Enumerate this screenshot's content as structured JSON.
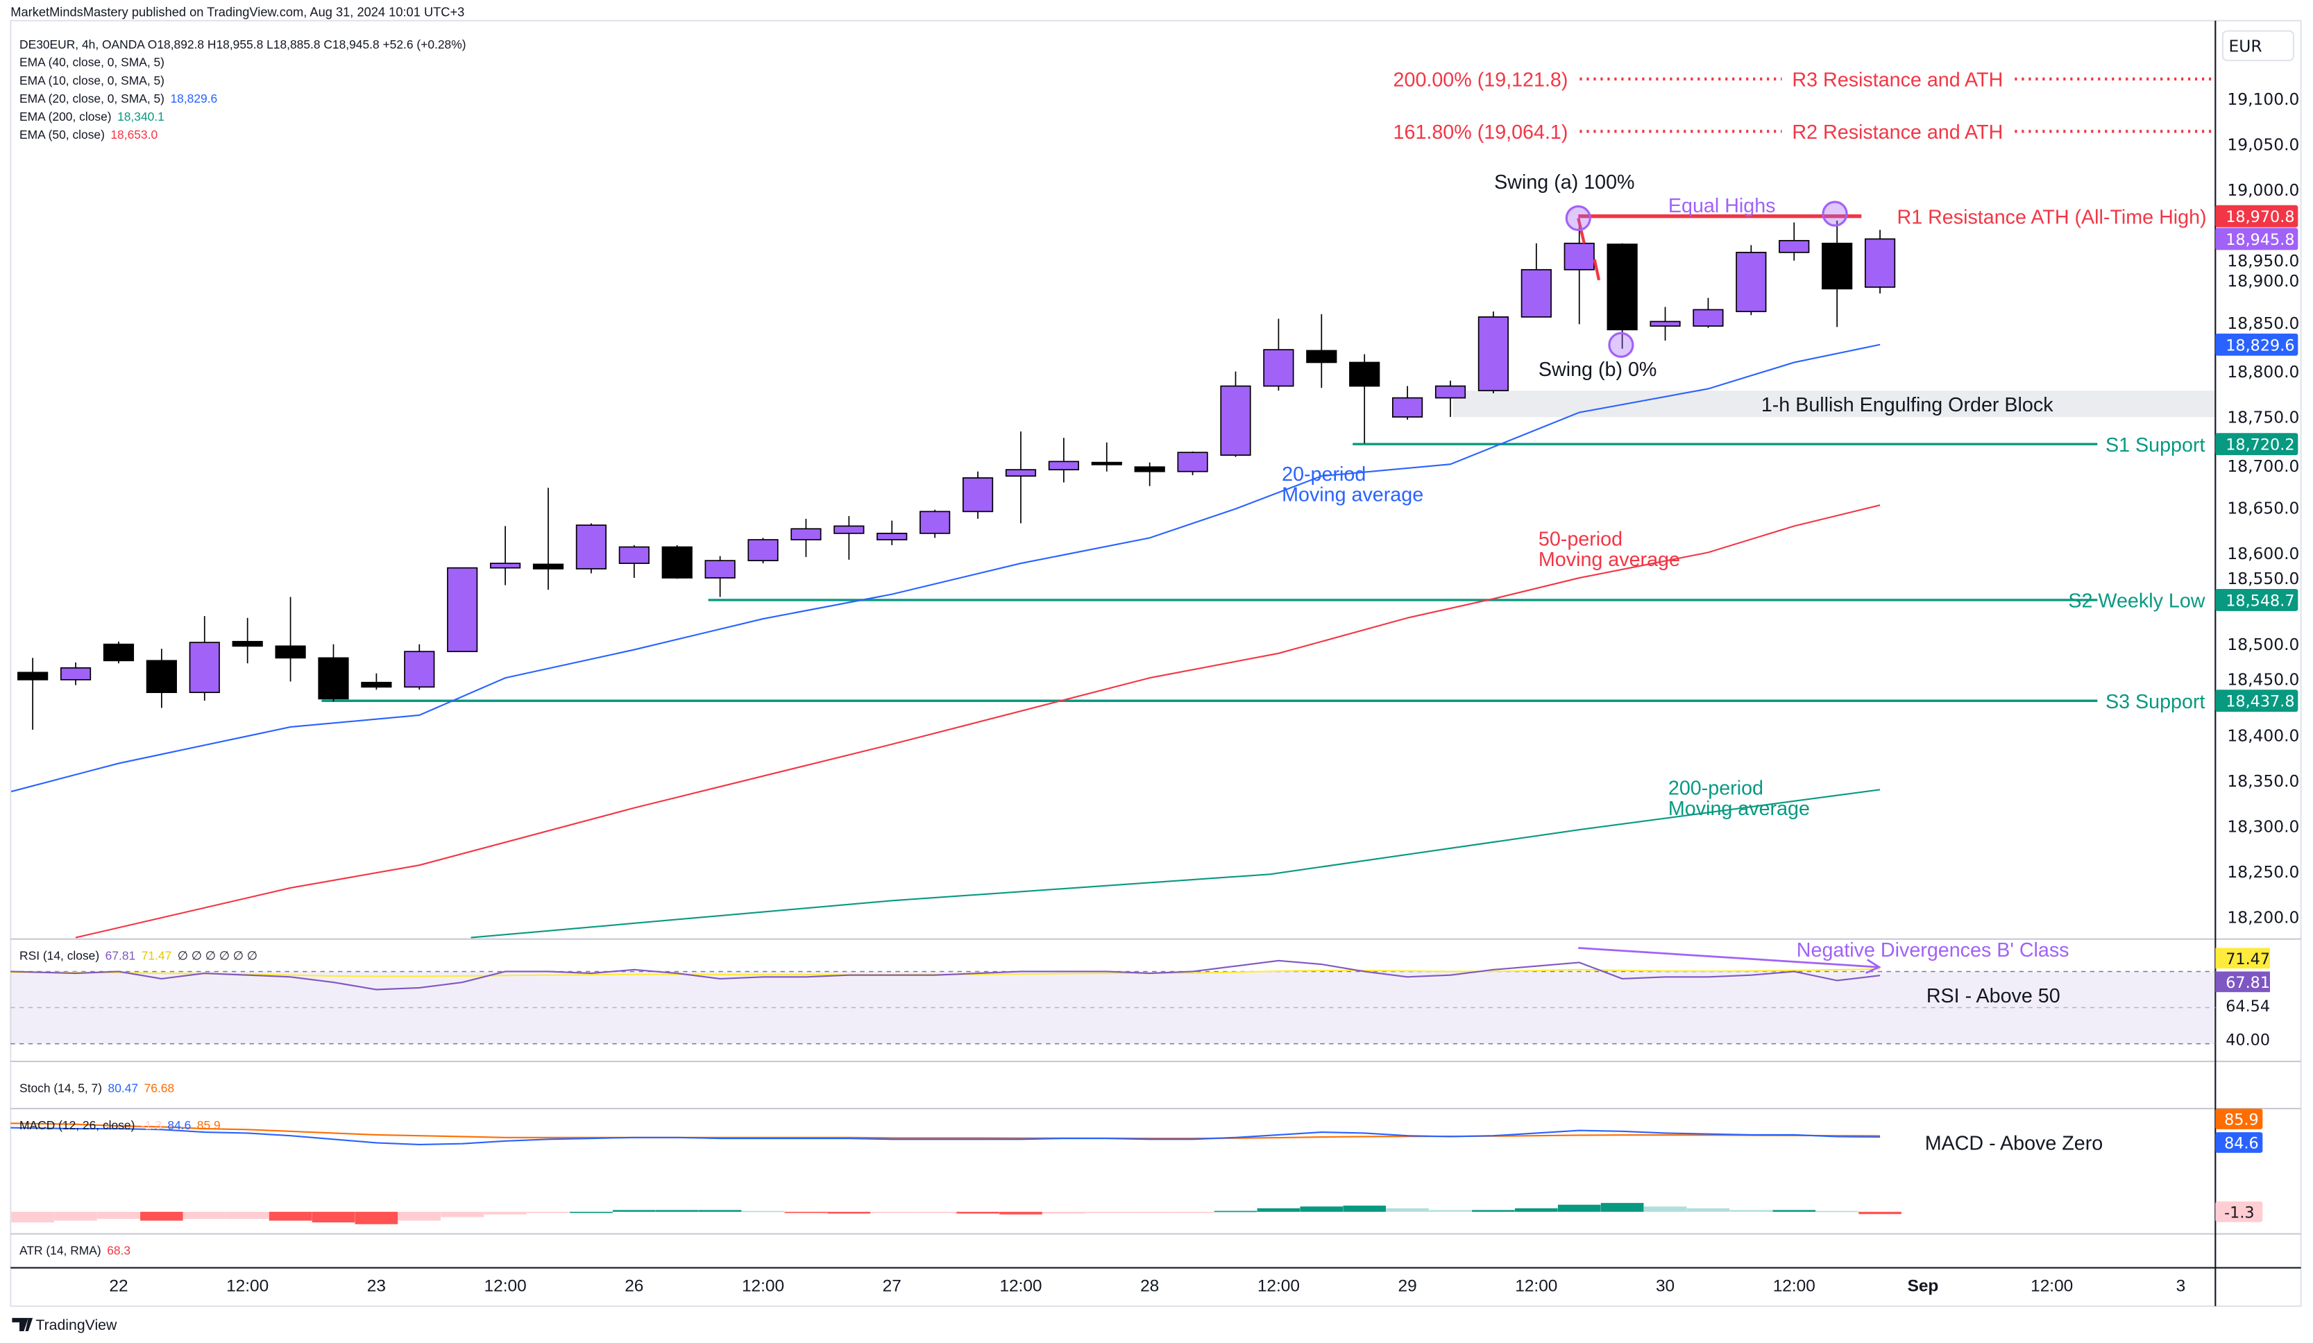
{
  "header": {
    "published": "MarketMindsMastery published on TradingView.com, Aug 31, 2024 10:01 UTC+3",
    "symbol_line": "DE30EUR, 4h, OANDA  O18,892.8  H18,955.8  L18,885.8  C18,945.8  +52.6 (+0.28%)"
  },
  "legend": [
    {
      "label": "EMA (40, close, 0, SMA, 5)",
      "value": "",
      "color": "#131722"
    },
    {
      "label": "EMA (10, close, 0, SMA, 5)",
      "value": "",
      "color": "#131722"
    },
    {
      "label": "EMA (20, close, 0, SMA, 5)",
      "value": "18,829.6",
      "color": "#2962FF"
    },
    {
      "label": "EMA (200, close)",
      "value": "18,340.1",
      "color": "#089981"
    },
    {
      "label": "EMA (50, close)",
      "value": "18,653.0",
      "color": "#F23645"
    }
  ],
  "colors": {
    "bull": "#A162F7",
    "bear": "#000000",
    "ema20": "#2962FF",
    "ema50": "#F23645",
    "ema200": "#089981",
    "support": "#089981",
    "resistance": "#F23645",
    "purple": "#A162F7",
    "rsi": "#7E57C2",
    "rsi_signal": "#FFEB3B",
    "macd": "#2962FF",
    "macd_signal": "#FF6D00"
  },
  "currency": "EUR",
  "price_ticks": [
    "19,100.0",
    "19,050.0",
    "19,000.0",
    "18,950.0",
    "18,900.0",
    "18,850.0",
    "18,800.0",
    "18,750.0",
    "18,700.0",
    "18,650.0",
    "18,600.0",
    "18,550.0",
    "18,500.0",
    "18,450.0",
    "18,400.0",
    "18,350.0",
    "18,300.0",
    "18,250.0",
    "18,200.0"
  ],
  "price_tick_values": [
    19100,
    19050,
    19000,
    18950,
    18900,
    18850,
    18800,
    18750,
    18700,
    18650,
    18600,
    18550,
    18500,
    18450,
    18400,
    18350,
    18300,
    18250,
    18200
  ],
  "price_labels": [
    {
      "text": "18,970.8",
      "value": 18970.8,
      "bg": "#F23645",
      "fg": "#ffffff"
    },
    {
      "text": "18,945.8",
      "value": 18945.8,
      "bg": "#A162F7",
      "fg": "#ffffff"
    },
    {
      "text": "18,829.6",
      "value": 18829.6,
      "bg": "#2962FF",
      "fg": "#ffffff"
    },
    {
      "text": "18,720.2",
      "value": 18720.2,
      "bg": "#089981",
      "fg": "#ffffff"
    },
    {
      "text": "18,548.7",
      "value": 18548.7,
      "bg": "#089981",
      "fg": "#ffffff"
    },
    {
      "text": "18,437.8",
      "value": 18437.8,
      "bg": "#089981",
      "fg": "#ffffff"
    }
  ],
  "candles": [
    [
      18469,
      18485,
      18406,
      18461
    ],
    [
      18461,
      18480,
      18455,
      18474
    ],
    [
      18500,
      18503,
      18479,
      18482
    ],
    [
      18482,
      18495,
      18430,
      18447
    ],
    [
      18447,
      18531,
      18438,
      18502
    ],
    [
      18503,
      18529,
      18479,
      18498
    ],
    [
      18498,
      18552,
      18459,
      18485
    ],
    [
      18485,
      18500,
      18437,
      18440
    ],
    [
      18458,
      18468,
      18450,
      18453
    ],
    [
      18453,
      18500,
      18450,
      18492
    ],
    [
      18492,
      18584,
      18492,
      18584
    ],
    [
      18584,
      18630,
      18565,
      18589
    ],
    [
      18588,
      18672,
      18560,
      18583
    ],
    [
      18583,
      18633,
      18578,
      18631
    ],
    [
      18589,
      18609,
      18573,
      18607
    ],
    [
      18607,
      18609,
      18572,
      18573
    ],
    [
      18573,
      18597,
      18552,
      18592
    ],
    [
      18592,
      18617,
      18589,
      18615
    ],
    [
      18615,
      18638,
      18596,
      18627
    ],
    [
      18622,
      18641,
      18593,
      18630
    ],
    [
      18615,
      18636,
      18609,
      18622
    ],
    [
      18622,
      18648,
      18617,
      18646
    ],
    [
      18646,
      18690,
      18638,
      18683
    ],
    [
      18685,
      18734,
      18633,
      18692
    ],
    [
      18692,
      18727,
      18678,
      18701
    ],
    [
      18700,
      18722,
      18690,
      18699
    ],
    [
      18695,
      18700,
      18674,
      18690
    ],
    [
      18690,
      18712,
      18686,
      18711
    ],
    [
      18708,
      18800,
      18706,
      18784
    ],
    [
      18784,
      18858,
      18779,
      18824
    ],
    [
      18823,
      18863,
      18782,
      18810
    ],
    [
      18810,
      18819,
      18721,
      18784
    ],
    [
      18750,
      18784,
      18747,
      18771
    ],
    [
      18771,
      18790,
      18750,
      18784
    ],
    [
      18779,
      18866,
      18776,
      18860
    ],
    [
      18860,
      18941,
      18860,
      18912
    ],
    [
      18912,
      18966,
      18852,
      18941
    ],
    [
      18940,
      18941,
      18825,
      18846
    ],
    [
      18850,
      18871,
      18834,
      18855
    ],
    [
      18850,
      18881,
      18848,
      18868
    ],
    [
      18866,
      18939,
      18862,
      18931
    ],
    [
      18931,
      18964,
      18922,
      18944
    ],
    [
      18941,
      18966,
      18849,
      18891
    ],
    [
      18892.8,
      18955.8,
      18885.8,
      18945.8
    ]
  ],
  "ema20": [
    [
      -0.5,
      18338
    ],
    [
      2,
      18369
    ],
    [
      6,
      18409
    ],
    [
      9,
      18422
    ],
    [
      11,
      18463
    ],
    [
      14,
      18494
    ],
    [
      17,
      18528
    ],
    [
      20,
      18555
    ],
    [
      23,
      18589
    ],
    [
      26,
      18617
    ],
    [
      28,
      18649
    ],
    [
      30,
      18685
    ],
    [
      33,
      18698
    ],
    [
      36,
      18755
    ],
    [
      39,
      18781
    ],
    [
      41,
      18810
    ],
    [
      43,
      18829.6
    ]
  ],
  "ema50": [
    [
      1,
      18177
    ],
    [
      6,
      18232
    ],
    [
      9,
      18257
    ],
    [
      14,
      18320
    ],
    [
      20,
      18390
    ],
    [
      26,
      18463
    ],
    [
      29,
      18490
    ],
    [
      32,
      18529
    ],
    [
      34,
      18550
    ],
    [
      36,
      18573
    ],
    [
      39,
      18601
    ],
    [
      41,
      18630
    ],
    [
      43,
      18653
    ]
  ],
  "ema200": [
    [
      10.2,
      18177
    ],
    [
      20,
      18218
    ],
    [
      28.8,
      18247
    ],
    [
      36,
      18296
    ],
    [
      43,
      18340.1
    ]
  ],
  "levels": {
    "s1": {
      "label": "S1 Support",
      "value": 18720.2,
      "from": 31
    },
    "s2": {
      "label": "S2 Weekly Low",
      "value": 18548.7,
      "from": 16
    },
    "s3": {
      "label": "S3 Support",
      "value": 18437.8,
      "from": 7
    },
    "r1": {
      "label": "R1 Resistance ATH (All-Time High)",
      "value": 18970.8
    },
    "r2": {
      "label": "R2 Resistance and ATH",
      "fib": "161.80% (19,064.1)",
      "value": 19064.1
    },
    "r3": {
      "label": "R3 Resistance and ATH",
      "fib": "200.00% (19,121.8)",
      "value": 19121.8
    }
  },
  "annotations": {
    "swing_a": "Swing (a) 100%",
    "swing_b": "Swing (b) 0%",
    "equal_highs": "Equal Highs",
    "order_block": "1-h Bullish Engulfing Order Block",
    "ma20_1": "20-period",
    "ma20_2": "Moving average",
    "ma50_1": "50-period",
    "ma50_2": "Moving average",
    "ma200_1": "200-period",
    "ma200_2": "Moving average",
    "divergence": "Negative Divergences B' Class",
    "rsi_note": "RSI -  Above 50",
    "macd_note": "MACD - Above Zero"
  },
  "rsi": {
    "title": "RSI (14, close)",
    "value": "67.81",
    "signal_value": "71.47",
    "extras": "∅ ∅ ∅ ∅ ∅ ∅",
    "axis": [
      {
        "text": "71.47",
        "bg": "#FFEB3B",
        "fg": "#131722"
      },
      {
        "text": "67.81",
        "bg": "#7E57C2",
        "fg": "#ffffff"
      },
      {
        "text": "64.54"
      },
      {
        "text": "40.00"
      }
    ],
    "values": [
      70,
      69,
      70,
      66,
      69,
      68,
      67,
      64,
      60,
      61,
      64,
      70,
      70,
      69,
      71,
      69,
      66,
      67,
      67,
      68,
      68,
      68,
      69,
      70,
      70,
      70,
      69,
      70,
      73,
      76,
      74,
      70,
      67,
      68,
      71,
      73,
      75,
      66,
      67,
      67,
      68,
      70,
      65,
      67.81
    ],
    "signal": [
      69.5,
      69.5,
      69.3,
      69,
      68.8,
      68.5,
      68,
      67.5,
      67.3,
      67.3,
      67.5,
      67.8,
      68,
      68.2,
      68.4,
      68.4,
      68.3,
      68.2,
      68.2,
      68.2,
      68.2,
      68.3,
      68.4,
      68.6,
      68.8,
      69,
      69,
      69.1,
      69.6,
      70.2,
      70.6,
      70.6,
      70.3,
      70,
      70.1,
      70.5,
      71,
      70.6,
      70.3,
      70.2,
      70.3,
      70.6,
      70.9,
      71.47
    ]
  },
  "stoch": {
    "title": "Stoch (14, 5, 7)",
    "k": "80.47",
    "d": "76.68"
  },
  "macd": {
    "title": "MACD (12, 26, close)",
    "hist_value": "-1.3",
    "macd_value": "84.6",
    "signal_value": "85.9",
    "axis": [
      {
        "text": "85.9",
        "bg": "#FF6D00",
        "fg": "#ffffff"
      },
      {
        "text": "84.6",
        "bg": "#2962FF",
        "fg": "#ffffff"
      },
      {
        "text": "-1.3",
        "bg": "#FFCDD2",
        "fg": "#131722"
      }
    ],
    "macd": [
      95,
      94,
      94,
      93,
      90,
      89,
      86,
      82,
      78,
      76,
      77,
      80,
      82,
      83,
      84,
      84,
      83,
      83,
      83,
      83,
      82,
      82,
      82,
      82,
      83,
      83,
      82,
      82,
      84,
      87,
      90,
      89,
      86,
      85,
      86,
      89,
      92,
      91,
      89,
      88,
      87,
      87,
      85,
      84.6
    ],
    "signal": [
      100,
      99,
      97,
      96,
      94,
      93,
      91,
      89,
      87,
      86,
      85,
      84,
      84,
      84,
      84,
      84,
      84,
      84,
      84,
      84,
      83.5,
      83.5,
      83.5,
      83.3,
      83.3,
      83.2,
      83,
      83,
      83.3,
      83.8,
      84.5,
      85,
      85.2,
      85.3,
      85.6,
      86,
      86.6,
      86.8,
      86.8,
      86.7,
      86.5,
      86.3,
      86,
      85.9
    ],
    "hist": [
      -6,
      -5,
      -4,
      -5,
      -4,
      -4,
      -5,
      -6,
      -7,
      -5,
      -3,
      -1.5,
      -0.5,
      0,
      1,
      1,
      1,
      0.5,
      -0.5,
      -1,
      -0.5,
      -0.5,
      -1,
      -1.5,
      -1,
      -0.5,
      -0.5,
      -0.5,
      0.5,
      2,
      3,
      3.5,
      2,
      1,
      1,
      2,
      4,
      5,
      3,
      2,
      1,
      1,
      0.5,
      -1.3
    ]
  },
  "atr": {
    "title": "ATR (14, RMA)",
    "value": "68.3"
  },
  "time_axis": [
    {
      "text": "22",
      "i": 2
    },
    {
      "text": "12:00",
      "i": 5
    },
    {
      "text": "23",
      "i": 8
    },
    {
      "text": "12:00",
      "i": 11
    },
    {
      "text": "26",
      "i": 14
    },
    {
      "text": "12:00",
      "i": 17
    },
    {
      "text": "27",
      "i": 20
    },
    {
      "text": "12:00",
      "i": 23
    },
    {
      "text": "28",
      "i": 26
    },
    {
      "text": "12:00",
      "i": 29
    },
    {
      "text": "29",
      "i": 32
    },
    {
      "text": "12:00",
      "i": 35
    },
    {
      "text": "30",
      "i": 38
    },
    {
      "text": "12:00",
      "i": 41
    },
    {
      "text": "Sep",
      "i": 44,
      "bold": true
    },
    {
      "text": "12:00",
      "i": 47
    },
    {
      "text": "3",
      "i": 50
    }
  ],
  "footer": {
    "brand": "TradingView"
  }
}
